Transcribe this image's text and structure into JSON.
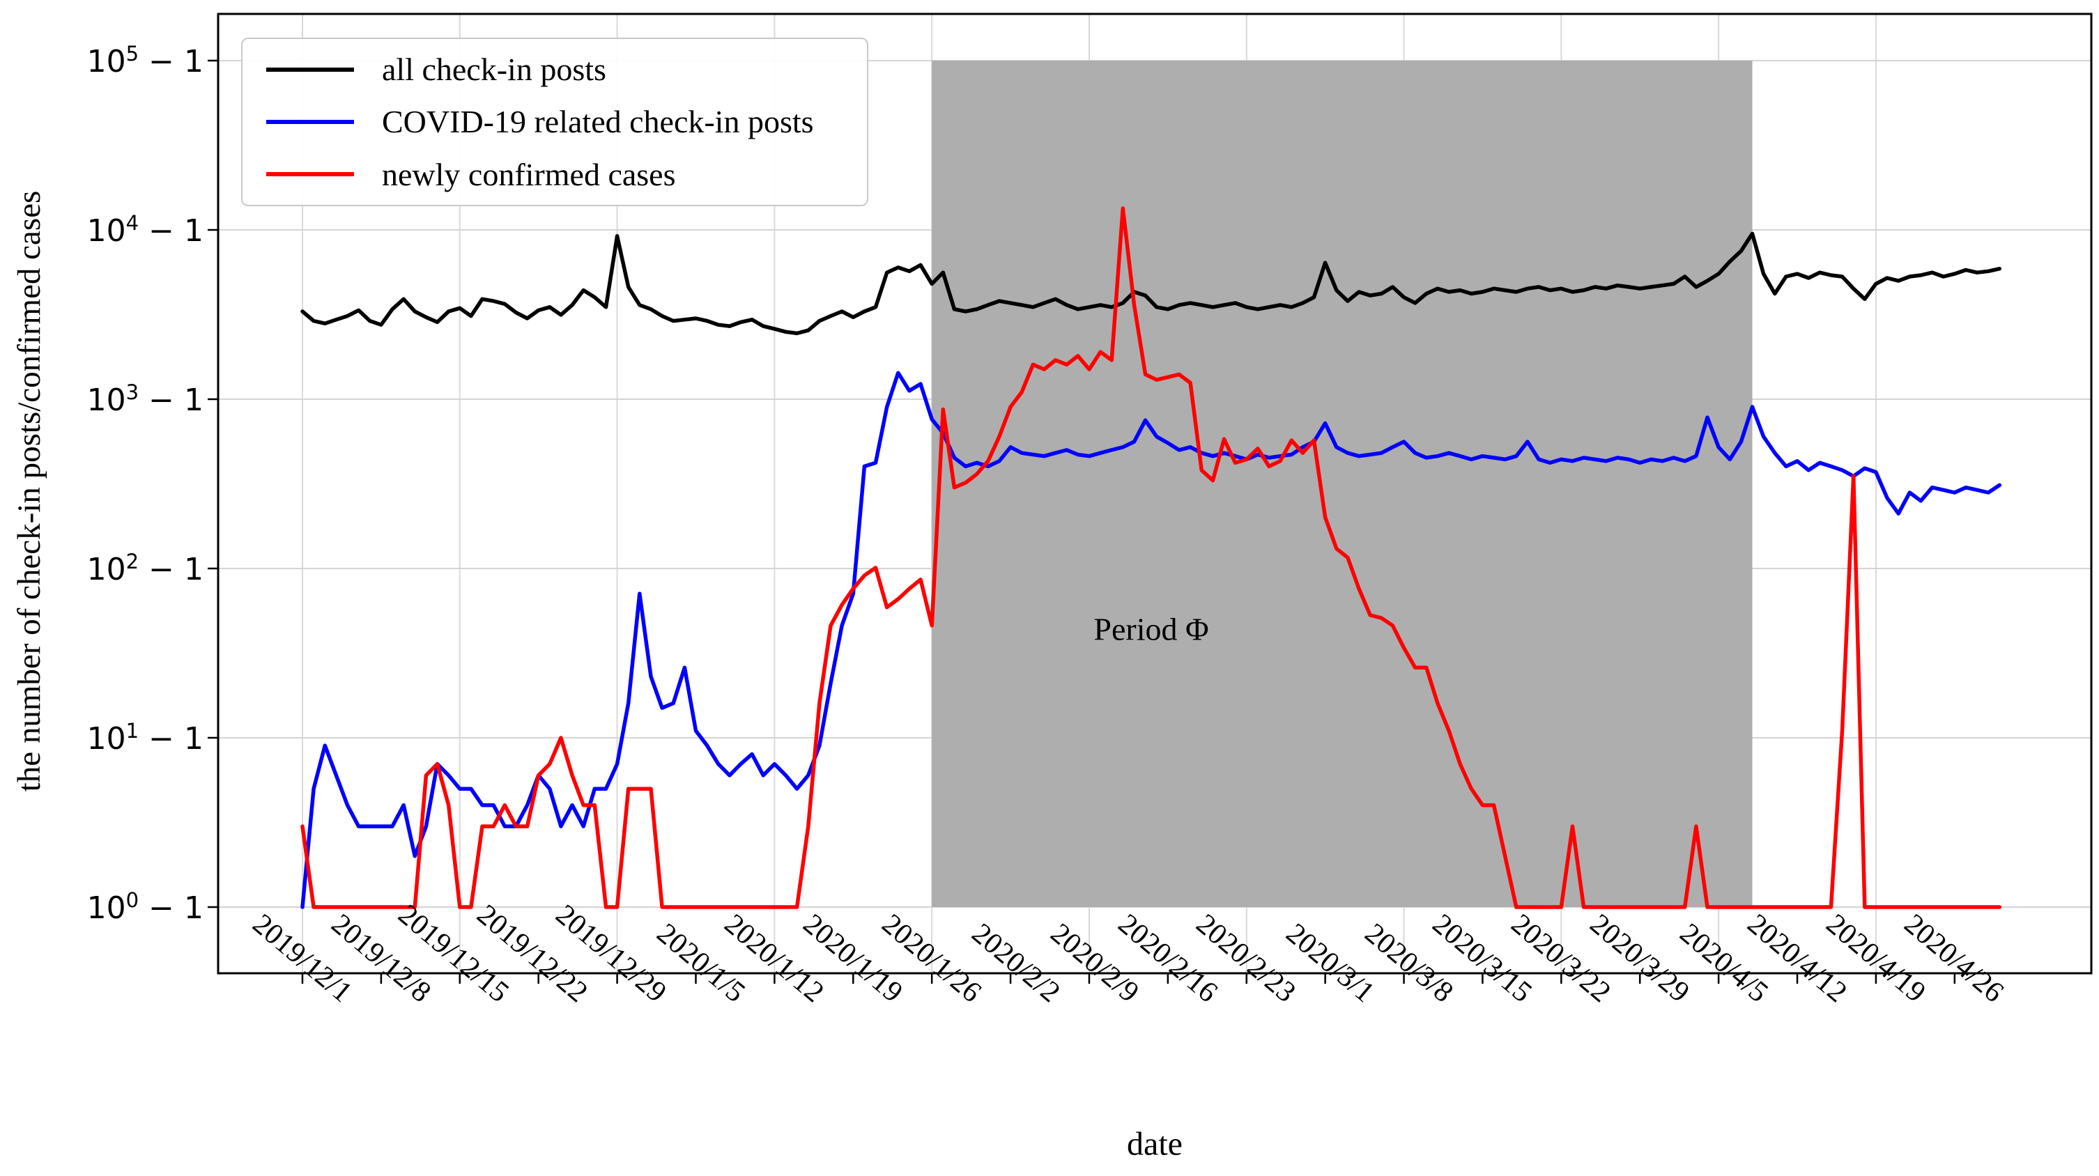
{
  "chart_data": {
    "type": "line",
    "title": "",
    "xlabel": "date",
    "ylabel": "the number of check-in posts/confirmed cases",
    "y_scale": "log10(value+1)",
    "grid": true,
    "legend_position": "upper left",
    "x_start_date": "2019/12/1",
    "x_end_date": "2020/4/30",
    "x_tick_interval_days": 7,
    "x_tick_labels": [
      "2019/12/1",
      "2019/12/8",
      "2019/12/15",
      "2019/12/22",
      "2019/12/29",
      "2020/1/5",
      "2020/1/12",
      "2020/1/19",
      "2020/1/26",
      "2020/2/2",
      "2020/2/9",
      "2020/2/16",
      "2020/2/23",
      "2020/3/1",
      "2020/3/8",
      "2020/3/15",
      "2020/3/22",
      "2020/3/29",
      "2020/4/5",
      "2020/4/12",
      "2020/4/19",
      "2020/4/26"
    ],
    "y_ticks": [
      {
        "exponent": 5,
        "label": "10^5 − 1"
      },
      {
        "exponent": 4,
        "label": "10^4 − 1"
      },
      {
        "exponent": 3,
        "label": "10^3 − 1"
      },
      {
        "exponent": 2,
        "label": "10^2 − 1"
      },
      {
        "exponent": 1,
        "label": "10^1 − 1"
      },
      {
        "exponent": 0,
        "label": "10^0 − 1"
      }
    ],
    "shaded_region": {
      "label": "Period Φ",
      "from": "2020/1/26",
      "to": "2020/4/8",
      "color": "#ababab"
    },
    "series": [
      {
        "name": "all check-in posts",
        "color": "#000000",
        "values": [
          3300,
          2900,
          2800,
          2950,
          3100,
          3350,
          2900,
          2750,
          3400,
          3900,
          3300,
          3050,
          2850,
          3300,
          3450,
          3100,
          3900,
          3800,
          3650,
          3250,
          3000,
          3350,
          3500,
          3150,
          3600,
          4400,
          4000,
          3500,
          9200,
          4600,
          3600,
          3400,
          3100,
          2900,
          2950,
          3000,
          2900,
          2750,
          2700,
          2850,
          2950,
          2700,
          2600,
          2500,
          2450,
          2550,
          2900,
          3100,
          3300,
          3050,
          3300,
          3500,
          5600,
          6000,
          5700,
          6200,
          4800,
          5600,
          3400,
          3300,
          3400,
          3600,
          3800,
          3700,
          3600,
          3500,
          3700,
          3900,
          3600,
          3400,
          3500,
          3600,
          3500,
          3700,
          4300,
          4100,
          3500,
          3400,
          3600,
          3700,
          3600,
          3500,
          3600,
          3700,
          3500,
          3400,
          3500,
          3600,
          3500,
          3700,
          4000,
          6400,
          4400,
          3800,
          4300,
          4100,
          4200,
          4600,
          4000,
          3700,
          4200,
          4500,
          4300,
          4400,
          4200,
          4300,
          4500,
          4400,
          4300,
          4500,
          4600,
          4400,
          4500,
          4300,
          4400,
          4600,
          4500,
          4700,
          4600,
          4500,
          4600,
          4700,
          4800,
          5300,
          4600,
          5000,
          5500,
          6500,
          7500,
          9500,
          5500,
          4200,
          5300,
          5500,
          5200,
          5600,
          5400,
          5300,
          4500,
          3900,
          4800,
          5200,
          5000,
          5300,
          5400,
          5600,
          5300,
          5500,
          5800,
          5600,
          5700,
          5900
        ]
      },
      {
        "name": "COVID-19 related check-in posts",
        "color": "#0000ff",
        "values": [
          0,
          4,
          8,
          5,
          3,
          2,
          2,
          2,
          2,
          3,
          1,
          2,
          6,
          5,
          4,
          4,
          3,
          3,
          2,
          2,
          3,
          5,
          4,
          2,
          3,
          2,
          4,
          4,
          6,
          15,
          70,
          22,
          14,
          15,
          25,
          10,
          8,
          6,
          5,
          6,
          7,
          5,
          6,
          5,
          4,
          5,
          8,
          20,
          45,
          70,
          400,
          420,
          900,
          1430,
          1120,
          1230,
          760,
          630,
          450,
          400,
          420,
          400,
          430,
          520,
          480,
          470,
          460,
          480,
          500,
          470,
          460,
          480,
          500,
          520,
          560,
          750,
          600,
          550,
          500,
          520,
          480,
          460,
          480,
          460,
          440,
          470,
          450,
          460,
          470,
          520,
          560,
          720,
          520,
          480,
          460,
          470,
          480,
          520,
          560,
          480,
          450,
          460,
          480,
          460,
          440,
          460,
          450,
          440,
          460,
          560,
          440,
          420,
          440,
          430,
          450,
          440,
          430,
          450,
          440,
          420,
          440,
          430,
          450,
          430,
          460,
          780,
          520,
          440,
          560,
          900,
          600,
          480,
          400,
          430,
          380,
          420,
          400,
          380,
          350,
          390,
          370,
          260,
          210,
          280,
          250,
          300,
          290,
          280,
          300,
          290,
          280,
          310
        ]
      },
      {
        "name": "newly confirmed cases",
        "color": "#ff0000",
        "values": [
          2,
          0,
          0,
          0,
          0,
          0,
          0,
          0,
          0,
          0,
          0,
          5,
          6,
          3,
          0,
          0,
          2,
          2,
          3,
          2,
          2,
          5,
          6,
          9,
          5,
          3,
          3,
          0,
          0,
          4,
          4,
          4,
          0,
          0,
          0,
          0,
          0,
          0,
          0,
          0,
          0,
          0,
          0,
          0,
          0,
          2,
          15,
          45,
          60,
          75,
          90,
          100,
          58,
          65,
          75,
          85,
          45,
          870,
          300,
          320,
          360,
          430,
          600,
          900,
          1100,
          1600,
          1500,
          1700,
          1600,
          1800,
          1500,
          1900,
          1700,
          13400,
          3600,
          1400,
          1300,
          1350,
          1400,
          1250,
          380,
          330,
          580,
          420,
          440,
          510,
          400,
          430,
          570,
          480,
          570,
          200,
          130,
          115,
          75,
          52,
          50,
          45,
          33,
          25,
          25,
          15,
          10,
          6,
          4,
          3,
          3,
          1,
          0,
          0,
          0,
          0,
          0,
          2,
          0,
          0,
          0,
          0,
          0,
          0,
          0,
          0,
          0,
          0,
          2,
          0,
          0,
          0,
          0,
          0,
          0,
          0,
          0,
          0,
          0,
          0,
          0,
          10,
          352,
          0,
          0,
          0,
          0,
          0,
          0,
          0,
          0,
          0,
          0,
          0,
          0,
          0
        ]
      }
    ]
  }
}
